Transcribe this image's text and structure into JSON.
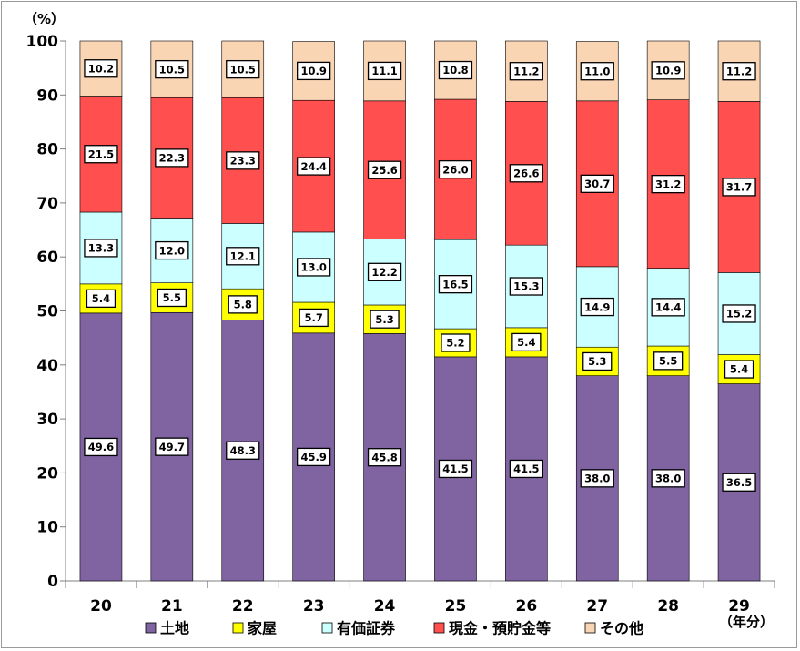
{
  "chart_data": {
    "type": "bar",
    "stacked": true,
    "categories": [
      "20",
      "21",
      "22",
      "23",
      "24",
      "25",
      "26",
      "27",
      "28",
      "29"
    ],
    "series": [
      {
        "name": "土地",
        "color": "#8064a2",
        "values": [
          49.6,
          49.7,
          48.3,
          45.9,
          45.8,
          41.5,
          41.5,
          38.0,
          38.0,
          36.5
        ]
      },
      {
        "name": "家屋",
        "color": "#ffff00",
        "values": [
          5.4,
          5.5,
          5.8,
          5.7,
          5.3,
          5.2,
          5.4,
          5.3,
          5.5,
          5.4
        ]
      },
      {
        "name": "有価証券",
        "color": "#ccffff",
        "values": [
          13.3,
          12.0,
          12.1,
          13.0,
          12.2,
          16.5,
          15.3,
          14.9,
          14.4,
          15.2
        ]
      },
      {
        "name": "現金・預貯金等",
        "color": "#ff4f4f",
        "values": [
          21.5,
          22.3,
          23.3,
          24.4,
          25.6,
          26.0,
          26.6,
          30.7,
          31.2,
          31.7
        ]
      },
      {
        "name": "その他",
        "color": "#fad5b4",
        "values": [
          10.2,
          10.5,
          10.5,
          10.9,
          11.1,
          10.8,
          11.2,
          11.0,
          10.9,
          11.2
        ]
      }
    ],
    "y_unit": "（%）",
    "x_unit": "（年分）",
    "ylim": [
      0,
      100
    ],
    "yticks": [
      0,
      10,
      20,
      30,
      40,
      50,
      60,
      70,
      80,
      90,
      100
    ],
    "grid": false,
    "legend_position": "bottom",
    "data_labels": true
  }
}
